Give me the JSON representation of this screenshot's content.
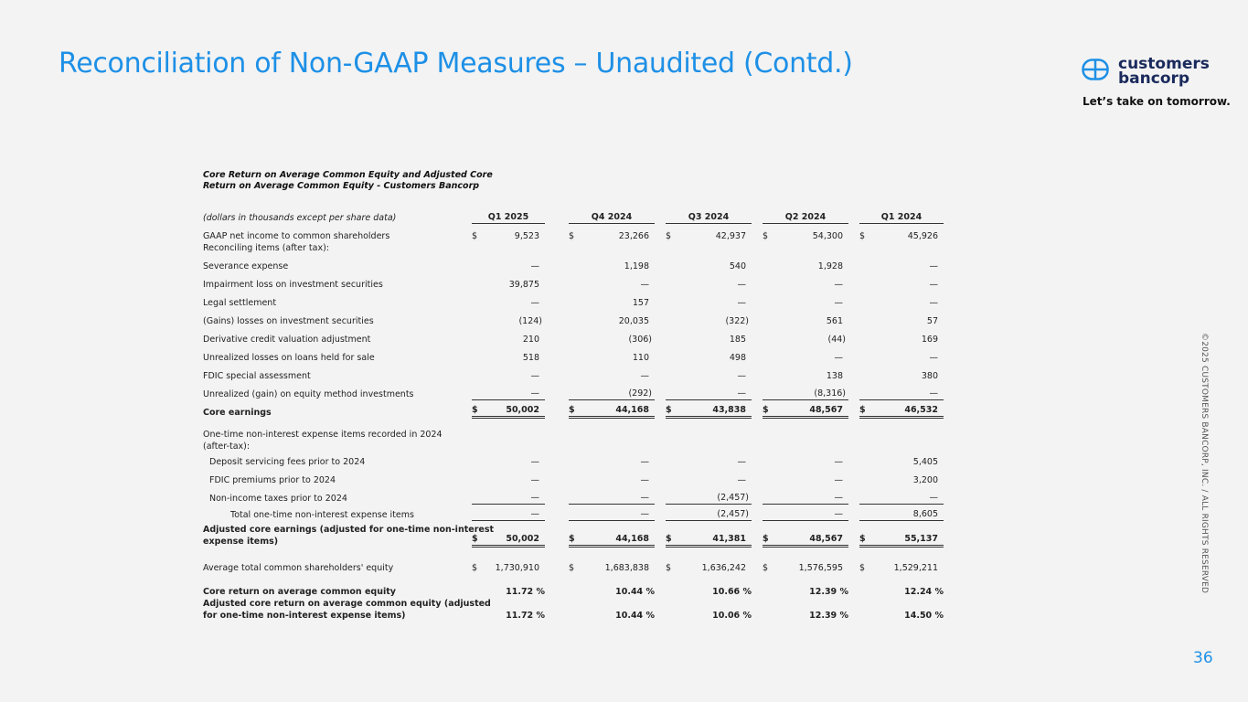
{
  "header": {
    "title": "Reconciliation of Non-GAAP Measures – Unaudited (Contd.)",
    "logo_line1": "customers",
    "logo_line2": "bancorp",
    "tagline": "Let’s take on tomorrow.",
    "brand_color": "#1e90e6"
  },
  "table": {
    "title_line1": "Core Return on Average Common Equity and Adjusted Core",
    "title_line2": "Return on Average Common Equity - Customers Bancorp",
    "units_label": "(dollars in thousands except per share data)",
    "columns": [
      "Q1 2025",
      "Q4 2024",
      "Q3 2024",
      "Q2 2024",
      "Q1 2024"
    ],
    "rows": [
      {
        "label": "GAAP net income to common shareholders",
        "dollar": true,
        "values": [
          "9,523",
          "23,266",
          "42,937",
          "54,300",
          "45,926"
        ]
      },
      {
        "label": "Reconciling items (after tax):",
        "values": []
      },
      {
        "label": "Severance expense",
        "values": [
          "—",
          "1,198",
          "540",
          "1,928",
          "—"
        ]
      },
      {
        "label": "Impairment loss on investment securities",
        "values": [
          "39,875",
          "—",
          "—",
          "—",
          "—"
        ]
      },
      {
        "label": "Legal settlement",
        "values": [
          "—",
          "157",
          "—",
          "—",
          "—"
        ]
      },
      {
        "label": "(Gains) losses on investment securities",
        "values": [
          "(124)",
          "20,035",
          "(322)",
          "561",
          "57"
        ]
      },
      {
        "label": "Derivative credit valuation adjustment",
        "values": [
          "210",
          "(306)",
          "185",
          "(44)",
          "169"
        ]
      },
      {
        "label": "Unrealized losses on loans held for sale",
        "values": [
          "518",
          "110",
          "498",
          "—",
          "—"
        ]
      },
      {
        "label": "FDIC special assessment",
        "values": [
          "—",
          "—",
          "—",
          "138",
          "380"
        ]
      },
      {
        "label": "Unrealized (gain) on equity method investments",
        "rule": "single",
        "values": [
          "—",
          "(292)",
          "—",
          "(8,316)",
          "—"
        ]
      },
      {
        "label": "Core earnings",
        "bold": true,
        "dollar": true,
        "rule": "double",
        "values": [
          "50,002",
          "44,168",
          "43,838",
          "48,567",
          "46,532"
        ]
      },
      {
        "label": "One-time non-interest expense items recorded in 2024\n(after-tax):",
        "values": []
      },
      {
        "label": "Deposit servicing fees prior to 2024",
        "indent": 1,
        "values": [
          "—",
          "—",
          "—",
          "—",
          "5,405"
        ]
      },
      {
        "label": "FDIC premiums prior to 2024",
        "indent": 1,
        "values": [
          "—",
          "—",
          "—",
          "—",
          "3,200"
        ]
      },
      {
        "label": "Non-income taxes prior to 2024",
        "indent": 1,
        "rule": "single",
        "values": [
          "—",
          "—",
          "(2,457)",
          "—",
          "—"
        ]
      },
      {
        "label": "Total one-time non-interest expense items",
        "indent": 2,
        "rule": "single",
        "values": [
          "—",
          "—",
          "(2,457)",
          "—",
          "8,605"
        ]
      },
      {
        "label": "Adjusted core earnings (adjusted for one-time non-interest\nexpense items)",
        "bold": true,
        "dollar": true,
        "rule": "double",
        "values": [
          "50,002",
          "44,168",
          "41,381",
          "48,567",
          "55,137"
        ]
      },
      {
        "label": "Average total common shareholders' equity",
        "dollar": true,
        "values": [
          "1,730,910",
          "1,683,838",
          "1,636,242",
          "1,576,595",
          "1,529,211"
        ]
      },
      {
        "label": "Core return on average common equity",
        "bold": true,
        "values": [
          "11.72 %",
          "10.44 %",
          "10.66 %",
          "12.39 %",
          "12.24 %"
        ]
      },
      {
        "label": "Adjusted core return on average common equity (adjusted\nfor one-time non-interest expense items)",
        "bold": true,
        "values": [
          "11.72 %",
          "10.44 %",
          "10.06 %",
          "12.39 %",
          "14.50 %"
        ]
      }
    ]
  },
  "footer": {
    "copyright": "©2025 CUSTOMERS BANCORP, INC. / ALL RIGHTS RESERVED",
    "page_number": "36"
  }
}
